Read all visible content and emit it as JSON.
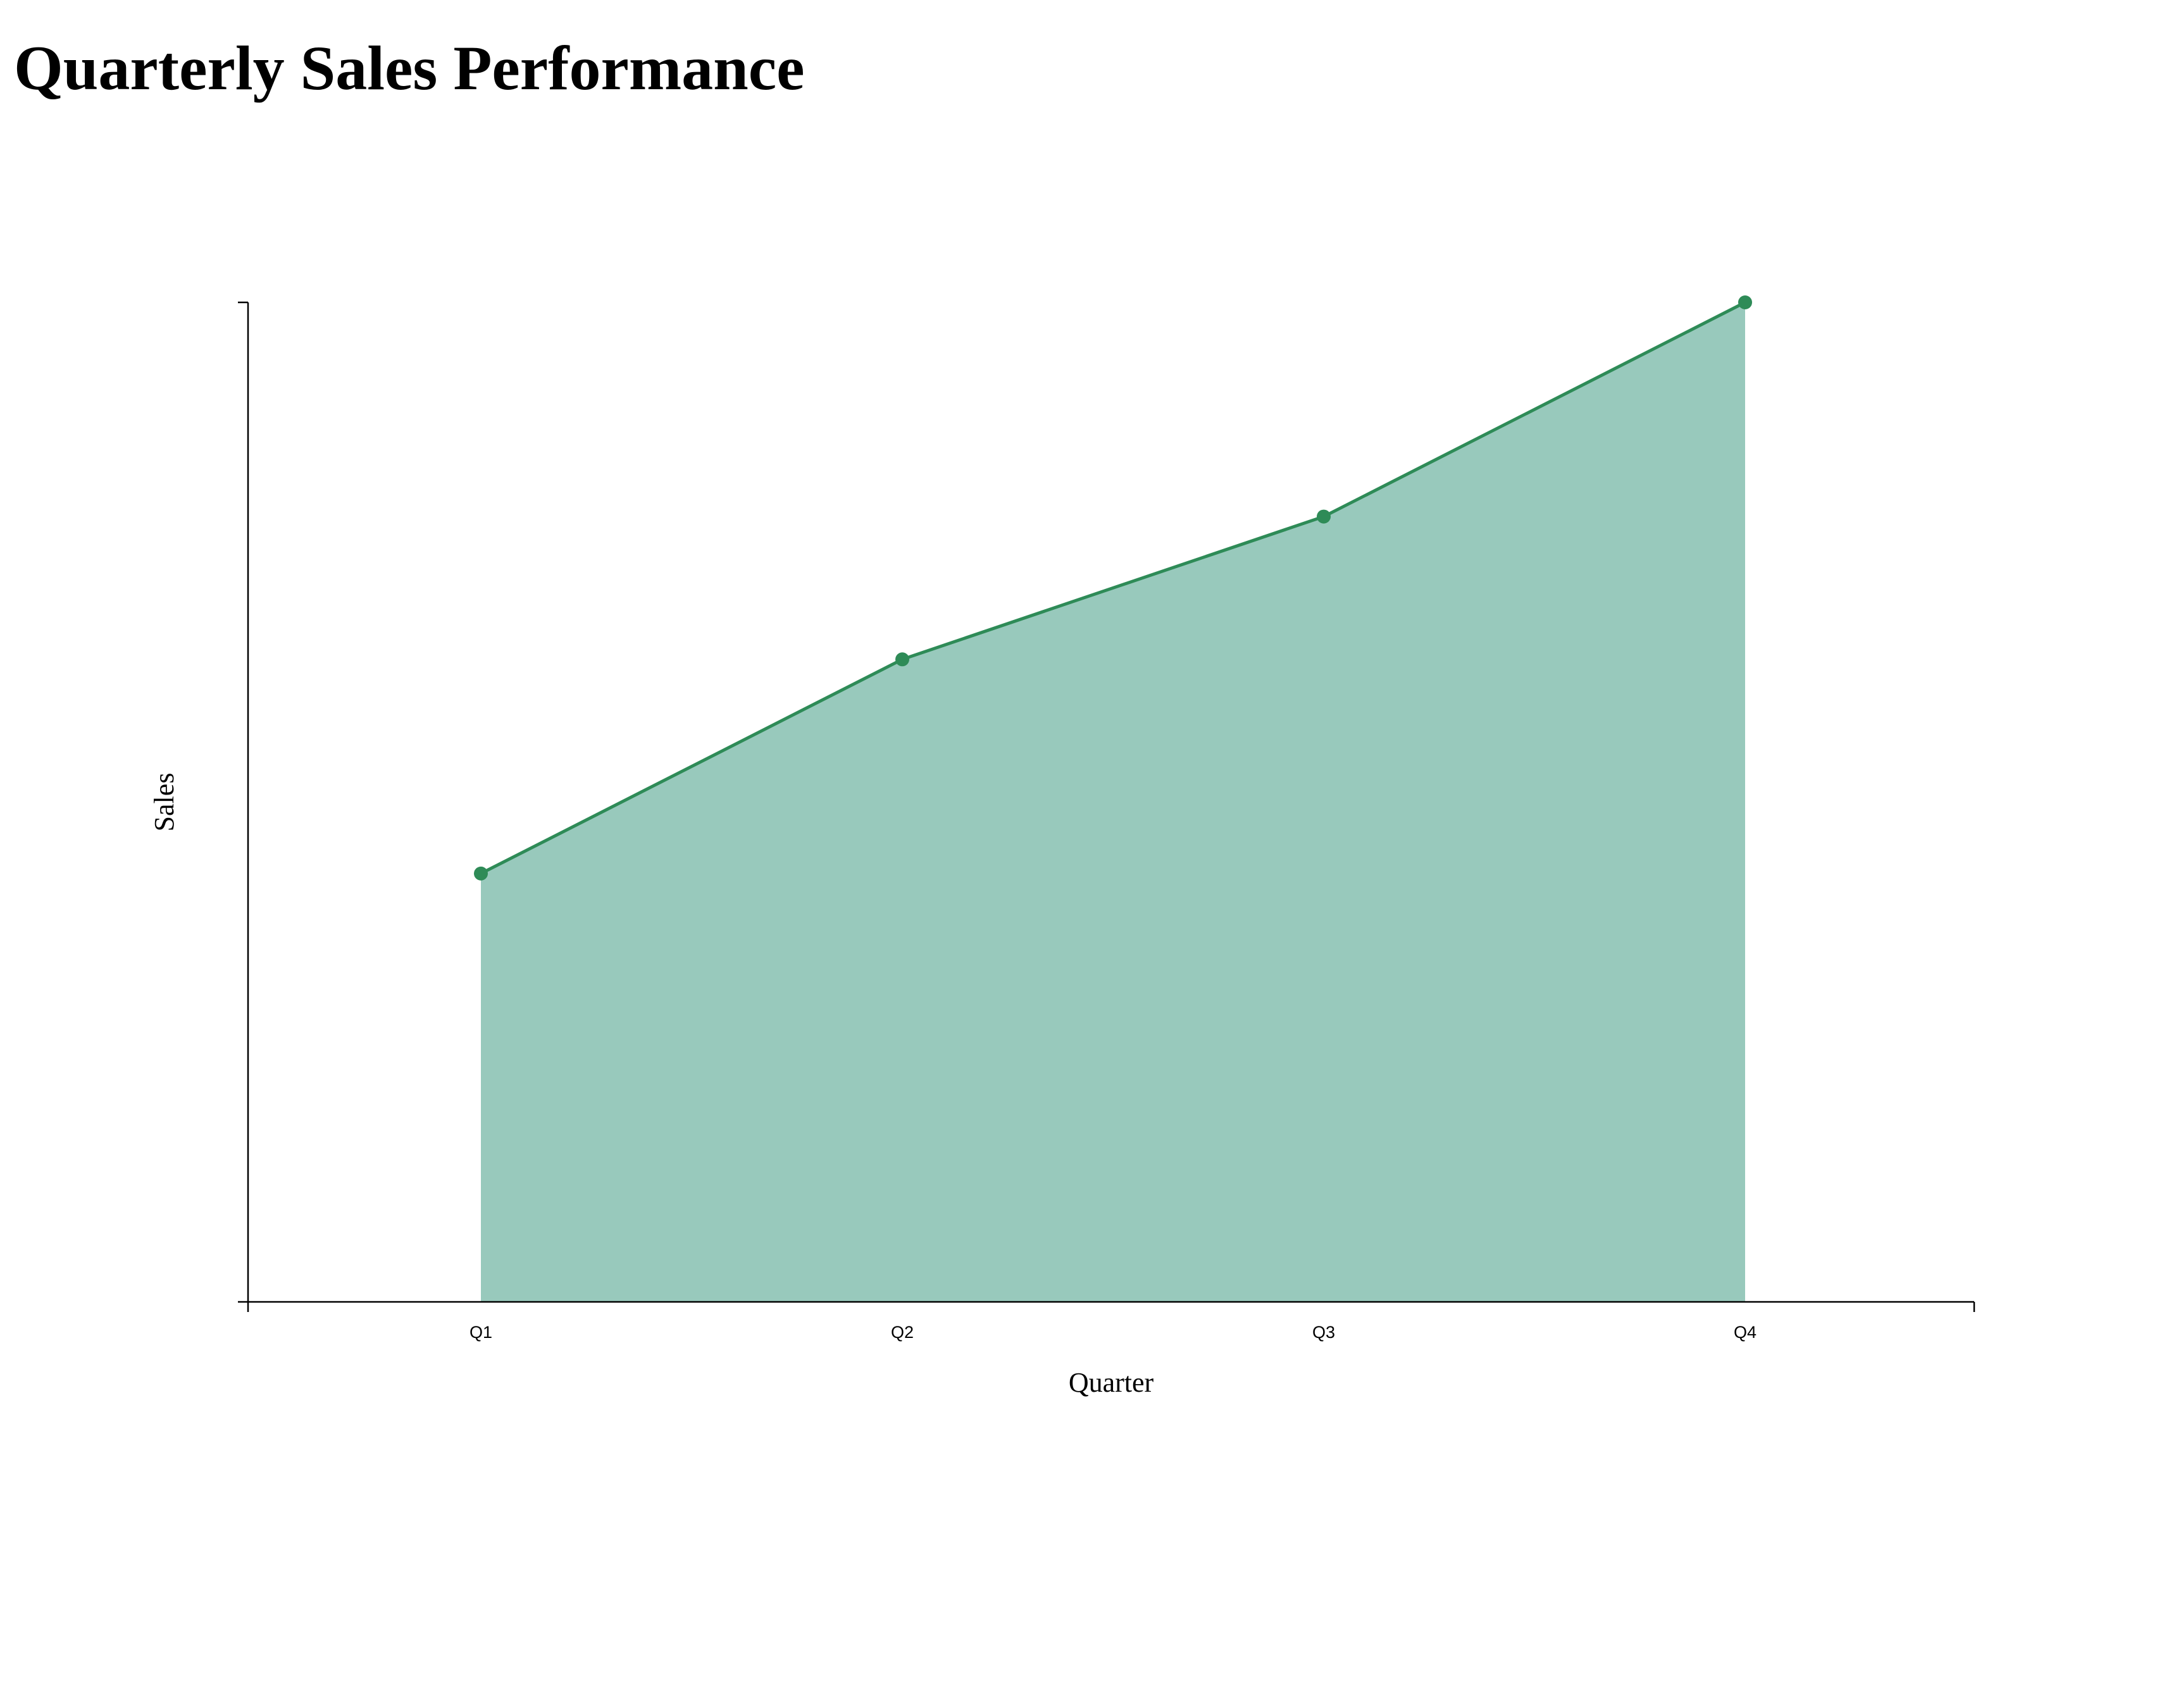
{
  "chart_data": {
    "type": "area",
    "title": "Quarterly Sales Performance",
    "xlabel": "Quarter",
    "ylabel": "Sales",
    "categories": [
      "Q1",
      "Q2",
      "Q3",
      "Q4"
    ],
    "values": [
      150,
      225,
      275,
      350
    ],
    "ylim": [
      0,
      350
    ],
    "y_tick_labels_shown": false,
    "grid": false,
    "legend": "none",
    "colors": {
      "line": "#2e8b57",
      "fill": "#98c9bc",
      "axis": "#000000"
    }
  }
}
